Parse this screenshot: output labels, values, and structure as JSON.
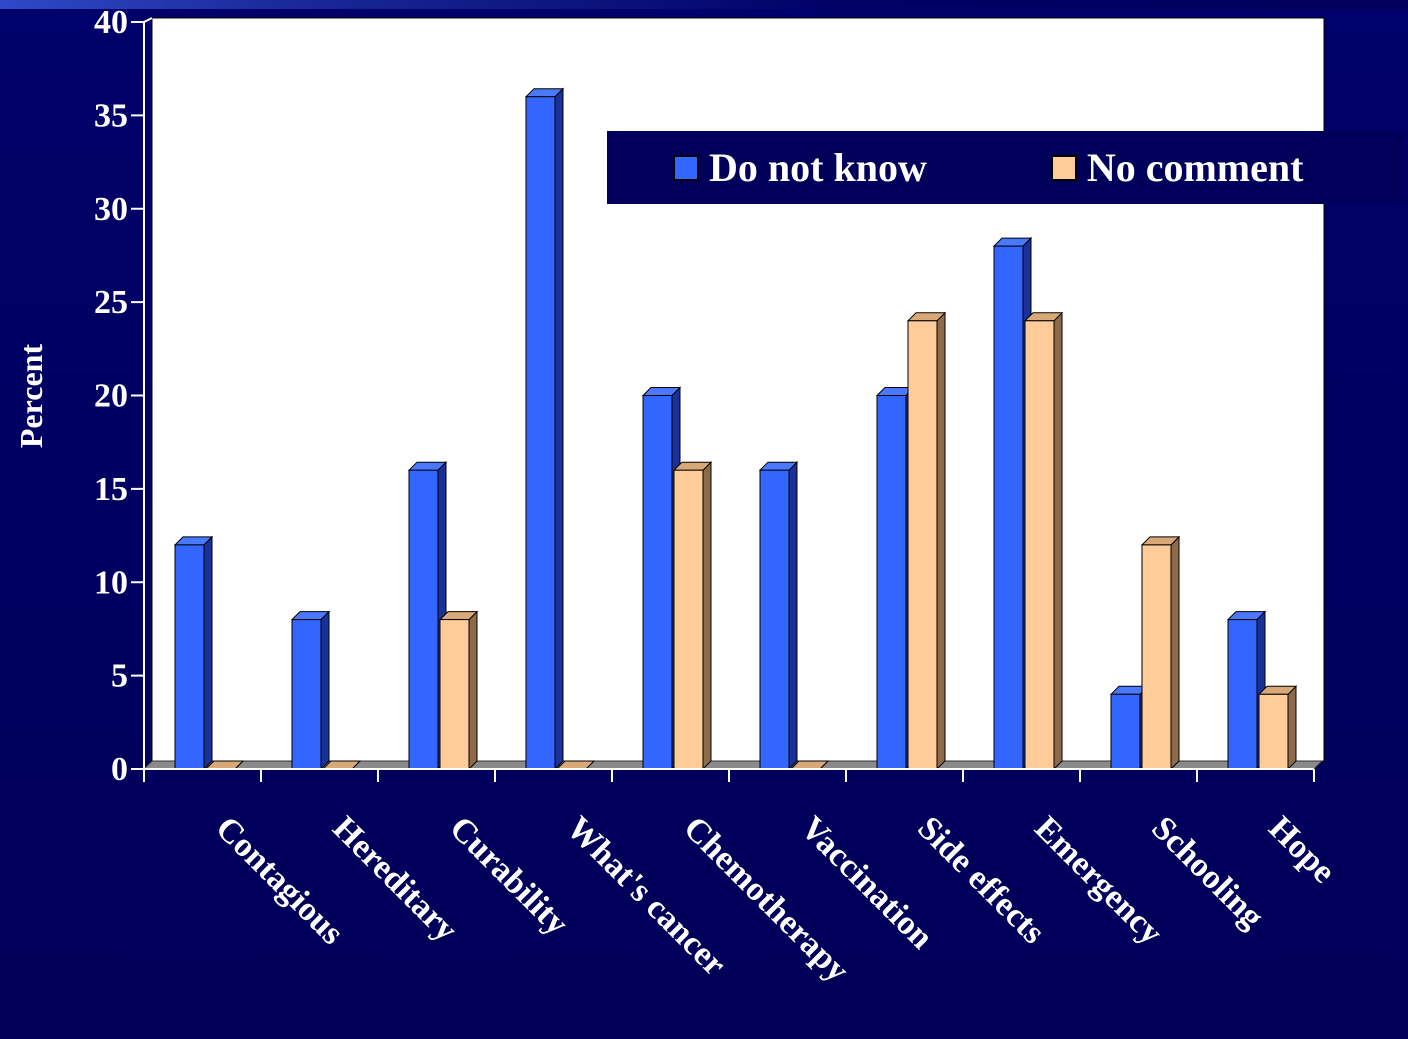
{
  "colors": {
    "background": "#00005a",
    "plot_area": "#ffffff",
    "floor": "#8a8a8a",
    "text": "#ffffff"
  },
  "chart_data": {
    "type": "bar",
    "title": "",
    "xlabel": "",
    "ylabel": "Percent",
    "ylim": [
      0,
      40
    ],
    "yticks": [
      0,
      5,
      10,
      15,
      20,
      25,
      30,
      35,
      40
    ],
    "grid": false,
    "legend_position": "top-right",
    "categories": [
      "Contagious",
      "Hereditary",
      "Curability",
      "What's cancer",
      "Chemotherapy",
      "Vaccination",
      "Side effects",
      "Emergency",
      "Schooling",
      "Hope"
    ],
    "series": [
      {
        "name": "Do not know",
        "color": "#3366ff",
        "side_color": "#1a3199",
        "top_color": "#4a78ff",
        "values": [
          12,
          8,
          16,
          36,
          20,
          16,
          20,
          28,
          4,
          8
        ]
      },
      {
        "name": "No comment",
        "color": "#ffcc99",
        "side_color": "#8c6a4a",
        "top_color": "#d9a878",
        "values": [
          0,
          0,
          8,
          0,
          16,
          0,
          24,
          24,
          12,
          4
        ]
      }
    ]
  }
}
